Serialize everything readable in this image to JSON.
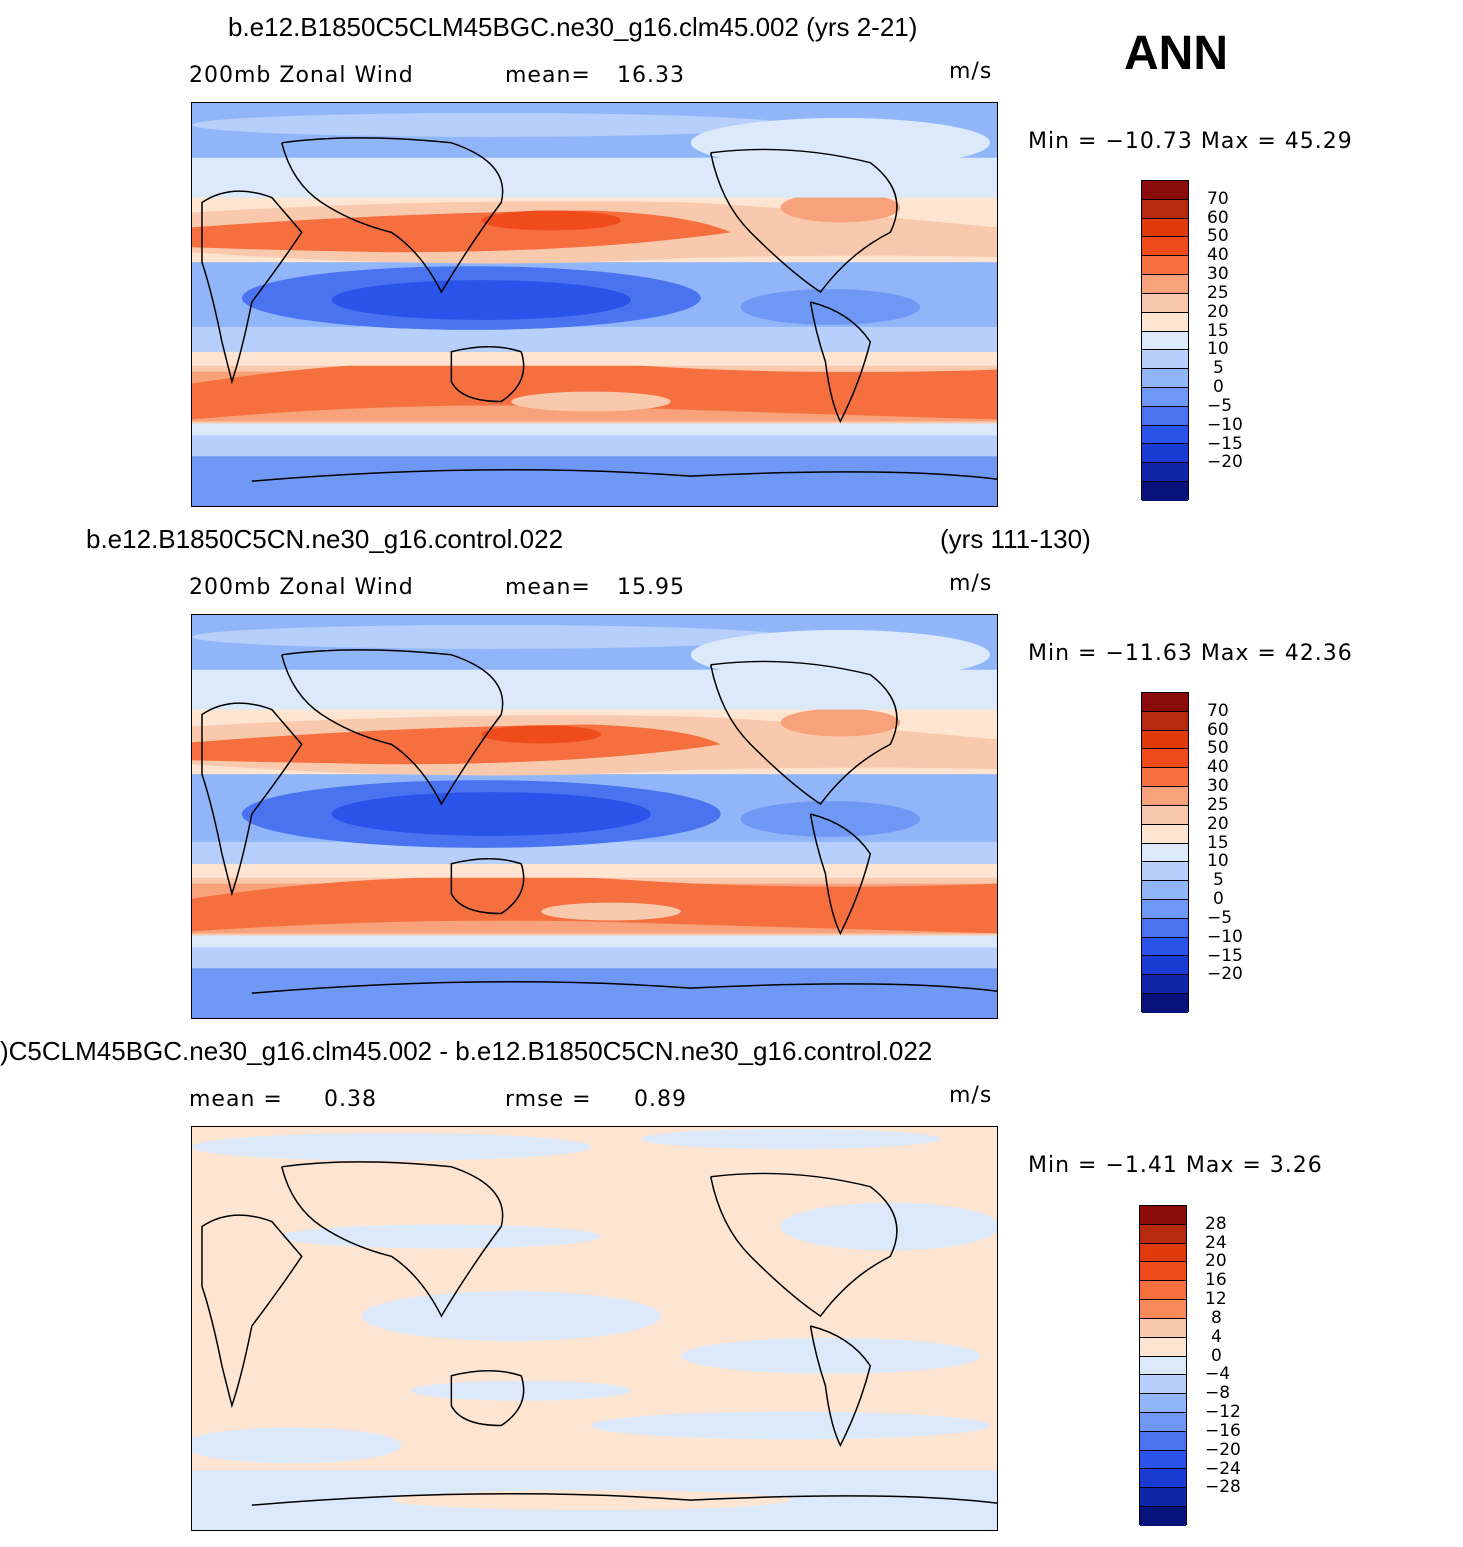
{
  "season": "ANN",
  "panels": [
    {
      "case_title": "b.e12.B1850C5CLM45BGC.ne30_g16.clm45.002 (yrs 2-21)",
      "case_years": "",
      "variable": "200mb  Zonal Wind",
      "stat1_label": "mean=",
      "stat1_value": "16.33",
      "stat2_label": "",
      "stat2_value": "",
      "units": "m/s",
      "minmax_label": "Min  =  −10.73  Max  =    45.29",
      "colorbar_labels": [
        "70",
        "60",
        "50",
        "40",
        "30",
        "25",
        "20",
        "15",
        "10",
        "5",
        "0",
        "−5",
        "−10",
        "−15",
        "−20"
      ],
      "colorbar_colors": [
        "#8b0a0a",
        "#b82a10",
        "#e03a0a",
        "#f04b1a",
        "#f56f3f",
        "#f7a27a",
        "#f9c9ad",
        "#fde5d2",
        "#dbe9fb",
        "#b7d0fb",
        "#91b5f9",
        "#6f98f5",
        "#4a74ef",
        "#2a53ea",
        "#1a3bd2",
        "#0f26a8",
        "#08127b"
      ]
    },
    {
      "case_title": "b.e12.B1850C5CN.ne30_g16.control.022",
      "case_years": "(yrs 111-130)",
      "variable": "200mb  Zonal Wind",
      "stat1_label": "mean=",
      "stat1_value": "15.95",
      "stat2_label": "",
      "stat2_value": "",
      "units": "m/s",
      "minmax_label": "Min  =  −11.63  Max  =    42.36",
      "colorbar_labels": [
        "70",
        "60",
        "50",
        "40",
        "30",
        "25",
        "20",
        "15",
        "10",
        "5",
        "0",
        "−5",
        "−10",
        "−15",
        "−20"
      ],
      "colorbar_colors": [
        "#8b0a0a",
        "#b82a10",
        "#e03a0a",
        "#f04b1a",
        "#f56f3f",
        "#f7a27a",
        "#f9c9ad",
        "#fde5d2",
        "#dbe9fb",
        "#b7d0fb",
        "#91b5f9",
        "#6f98f5",
        "#4a74ef",
        "#2a53ea",
        "#1a3bd2",
        "#0f26a8",
        "#08127b"
      ]
    },
    {
      "case_title": ")C5CLM45BGC.ne30_g16.clm45.002 - b.e12.B1850C5CN.ne30_g16.control.022",
      "case_years": "",
      "variable": "",
      "stat1_label": "mean  =",
      "stat1_value": "0.38",
      "stat2_label": "rmse  =",
      "stat2_value": "0.89",
      "units": "m/s",
      "minmax_label": "Min  =    −1.41  Max  =      3.26",
      "colorbar_labels": [
        "28",
        "24",
        "20",
        "16",
        "12",
        "8",
        "4",
        "0",
        "−4",
        "−8",
        "−12",
        "−16",
        "−20",
        "−24",
        "−28"
      ],
      "colorbar_colors": [
        "#8b0a0a",
        "#b82a10",
        "#e03a0a",
        "#f04b1a",
        "#f56f3f",
        "#f78a5a",
        "#f9c9ad",
        "#fde5d2",
        "#dbe9fb",
        "#b7d0fb",
        "#91b5f9",
        "#6f98f5",
        "#4a74ef",
        "#2a53ea",
        "#1a3bd2",
        "#0f26a8",
        "#08127b"
      ]
    }
  ]
}
